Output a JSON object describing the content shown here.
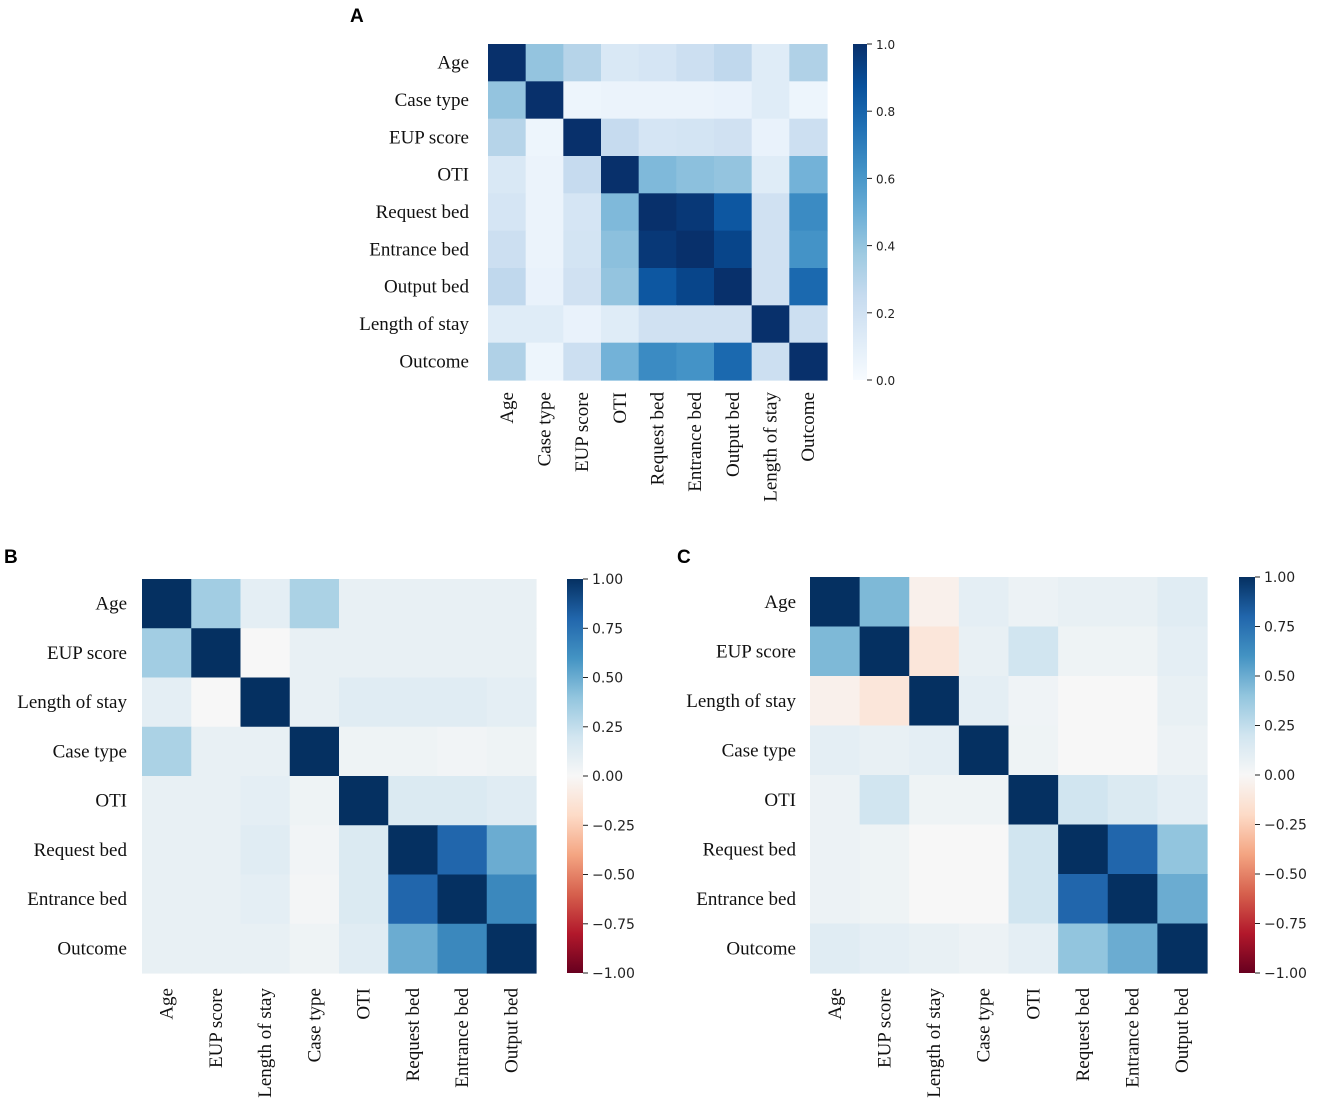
{
  "chart_data": [
    {
      "panel": "A",
      "type": "heatmap",
      "title": "",
      "row_labels": [
        "Age",
        "Case type",
        "EUP score",
        "OTI",
        "Request bed",
        "Entrance bed",
        "Output bed",
        "Length  of stay",
        "Outcome"
      ],
      "col_labels": [
        "Age",
        "Case type",
        "EUP score",
        "OTI",
        "Request bed",
        "Entrance bed",
        "Output bed",
        "Length of stay",
        "Outcome"
      ],
      "values": [
        [
          1.0,
          0.4,
          0.3,
          0.15,
          0.17,
          0.22,
          0.27,
          0.12,
          0.32
        ],
        [
          0.4,
          1.0,
          0.05,
          0.06,
          0.06,
          0.06,
          0.07,
          0.12,
          0.05
        ],
        [
          0.3,
          0.05,
          1.0,
          0.25,
          0.17,
          0.18,
          0.2,
          0.07,
          0.22
        ],
        [
          0.15,
          0.06,
          0.25,
          1.0,
          0.45,
          0.42,
          0.4,
          0.12,
          0.48
        ],
        [
          0.17,
          0.06,
          0.17,
          0.45,
          1.0,
          0.97,
          0.85,
          0.2,
          0.65
        ],
        [
          0.22,
          0.06,
          0.18,
          0.42,
          0.97,
          1.0,
          0.92,
          0.2,
          0.62
        ],
        [
          0.27,
          0.07,
          0.2,
          0.4,
          0.85,
          0.92,
          1.0,
          0.2,
          0.78
        ],
        [
          0.12,
          0.12,
          0.07,
          0.12,
          0.2,
          0.2,
          0.2,
          1.0,
          0.22
        ],
        [
          0.32,
          0.05,
          0.22,
          0.48,
          0.65,
          0.62,
          0.78,
          0.22,
          1.0
        ]
      ],
      "colorbar": {
        "min": 0.0,
        "max": 1.0,
        "ticks": [
          "0.0",
          "0.2",
          "0.4",
          "0.6",
          "0.8",
          "1.0"
        ],
        "colormap": "Blues"
      }
    },
    {
      "panel": "B",
      "type": "heatmap",
      "title": "",
      "row_labels": [
        "Age",
        "EUP score",
        "Length  of stay",
        "Case type",
        "OTI",
        "Request bed",
        "Entrance bed",
        "Outcome"
      ],
      "col_labels": [
        "Age",
        "EUP score",
        "Length of stay",
        "Case type",
        "OTI",
        "Request bed",
        "Entrance bed",
        "Output bed"
      ],
      "values": [
        [
          1.0,
          0.35,
          0.1,
          0.32,
          0.08,
          0.08,
          0.08,
          0.08
        ],
        [
          0.35,
          1.0,
          0.0,
          0.08,
          0.08,
          0.08,
          0.08,
          0.08
        ],
        [
          0.1,
          0.0,
          1.0,
          0.08,
          0.12,
          0.12,
          0.12,
          0.1
        ],
        [
          0.32,
          0.08,
          0.08,
          1.0,
          0.05,
          0.05,
          0.03,
          0.05
        ],
        [
          0.08,
          0.08,
          0.1,
          0.05,
          1.0,
          0.15,
          0.15,
          0.12
        ],
        [
          0.08,
          0.08,
          0.12,
          0.03,
          0.15,
          1.0,
          0.8,
          0.5
        ],
        [
          0.08,
          0.08,
          0.1,
          0.02,
          0.15,
          0.8,
          1.0,
          0.65
        ],
        [
          0.08,
          0.08,
          0.08,
          0.05,
          0.12,
          0.5,
          0.65,
          1.0
        ]
      ],
      "colorbar": {
        "min": -1.0,
        "max": 1.0,
        "ticks": [
          "1.00",
          "0.75",
          "0.50",
          "0.25",
          "0.00",
          "−0.25",
          "−0.50",
          "−0.75",
          "−1.00"
        ],
        "colormap": "RdBu"
      }
    },
    {
      "panel": "C",
      "type": "heatmap",
      "title": "",
      "row_labels": [
        "Age",
        "EUP score",
        "Length  of stay",
        "Case type",
        "OTI",
        "Request bed",
        "Entrance bed",
        "Outcome"
      ],
      "col_labels": [
        "Age",
        "EUP score",
        "Length of stay",
        "Case type",
        "OTI",
        "Request bed",
        "Entrance bed",
        "Output bed"
      ],
      "values": [
        [
          1.0,
          0.45,
          -0.05,
          0.1,
          0.06,
          0.08,
          0.08,
          0.12
        ],
        [
          0.45,
          1.0,
          -0.12,
          0.08,
          0.2,
          0.05,
          0.05,
          0.1
        ],
        [
          -0.05,
          -0.12,
          1.0,
          0.1,
          0.04,
          0.0,
          0.0,
          0.08
        ],
        [
          0.1,
          0.08,
          0.1,
          1.0,
          0.05,
          0.0,
          0.0,
          0.06
        ],
        [
          0.06,
          0.2,
          0.05,
          0.05,
          1.0,
          0.2,
          0.15,
          0.1
        ],
        [
          0.06,
          0.05,
          0.0,
          0.0,
          0.2,
          1.0,
          0.8,
          0.4
        ],
        [
          0.06,
          0.05,
          0.0,
          0.0,
          0.2,
          0.8,
          1.0,
          0.5
        ],
        [
          0.12,
          0.1,
          0.08,
          0.06,
          0.1,
          0.4,
          0.5,
          1.0
        ]
      ],
      "colorbar": {
        "min": -1.0,
        "max": 1.0,
        "ticks": [
          "1.00",
          "0.75",
          "0.50",
          "0.25",
          "0.00",
          "−0.25",
          "−0.50",
          "−0.75",
          "−1.00"
        ],
        "colormap": "RdBu"
      }
    }
  ]
}
